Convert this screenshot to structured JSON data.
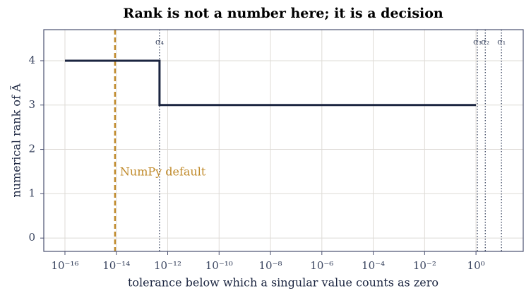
{
  "chart_data": {
    "type": "line",
    "title": "Rank is not a number here; it is a decision",
    "x_label": "tolerance below which a singular value counts as zero",
    "y_label": "numerical rank of Ã",
    "x_scale": "log",
    "xlim": [
      1.5e-17,
      69
    ],
    "ylim": [
      -0.3,
      4.7
    ],
    "xticks": [
      {
        "value": 1e-16,
        "label": "10⁻¹⁶"
      },
      {
        "value": 1e-14,
        "label": "10⁻¹⁴"
      },
      {
        "value": 1e-12,
        "label": "10⁻¹²"
      },
      {
        "value": 1e-10,
        "label": "10⁻¹⁰"
      },
      {
        "value": 1e-08,
        "label": "10⁻⁸"
      },
      {
        "value": 1e-06,
        "label": "10⁻⁶"
      },
      {
        "value": 0.0001,
        "label": "10⁻⁴"
      },
      {
        "value": 0.01,
        "label": "10⁻²"
      },
      {
        "value": 1,
        "label": "10⁰"
      }
    ],
    "yticks": [
      0,
      1,
      2,
      3,
      4
    ],
    "grid": true,
    "series": [
      {
        "color": "#1b2540",
        "x": [
          1e-16,
          4.8e-13,
          4.8e-13,
          1
        ],
        "values": [
          4,
          4,
          3,
          3
        ]
      }
    ],
    "vlines": [
      {
        "x": 4.8e-13,
        "label": "σ₄"
      },
      {
        "x": 1.13,
        "label": "σ₃"
      },
      {
        "x": 2.3,
        "label": "σ₂"
      },
      {
        "x": 9.8,
        "label": "σ₁"
      }
    ],
    "vline_color": "#3a4560",
    "annotations": [
      {
        "x": 8.9e-15,
        "label": "NumPy default",
        "color": "#c08a2a"
      }
    ]
  }
}
